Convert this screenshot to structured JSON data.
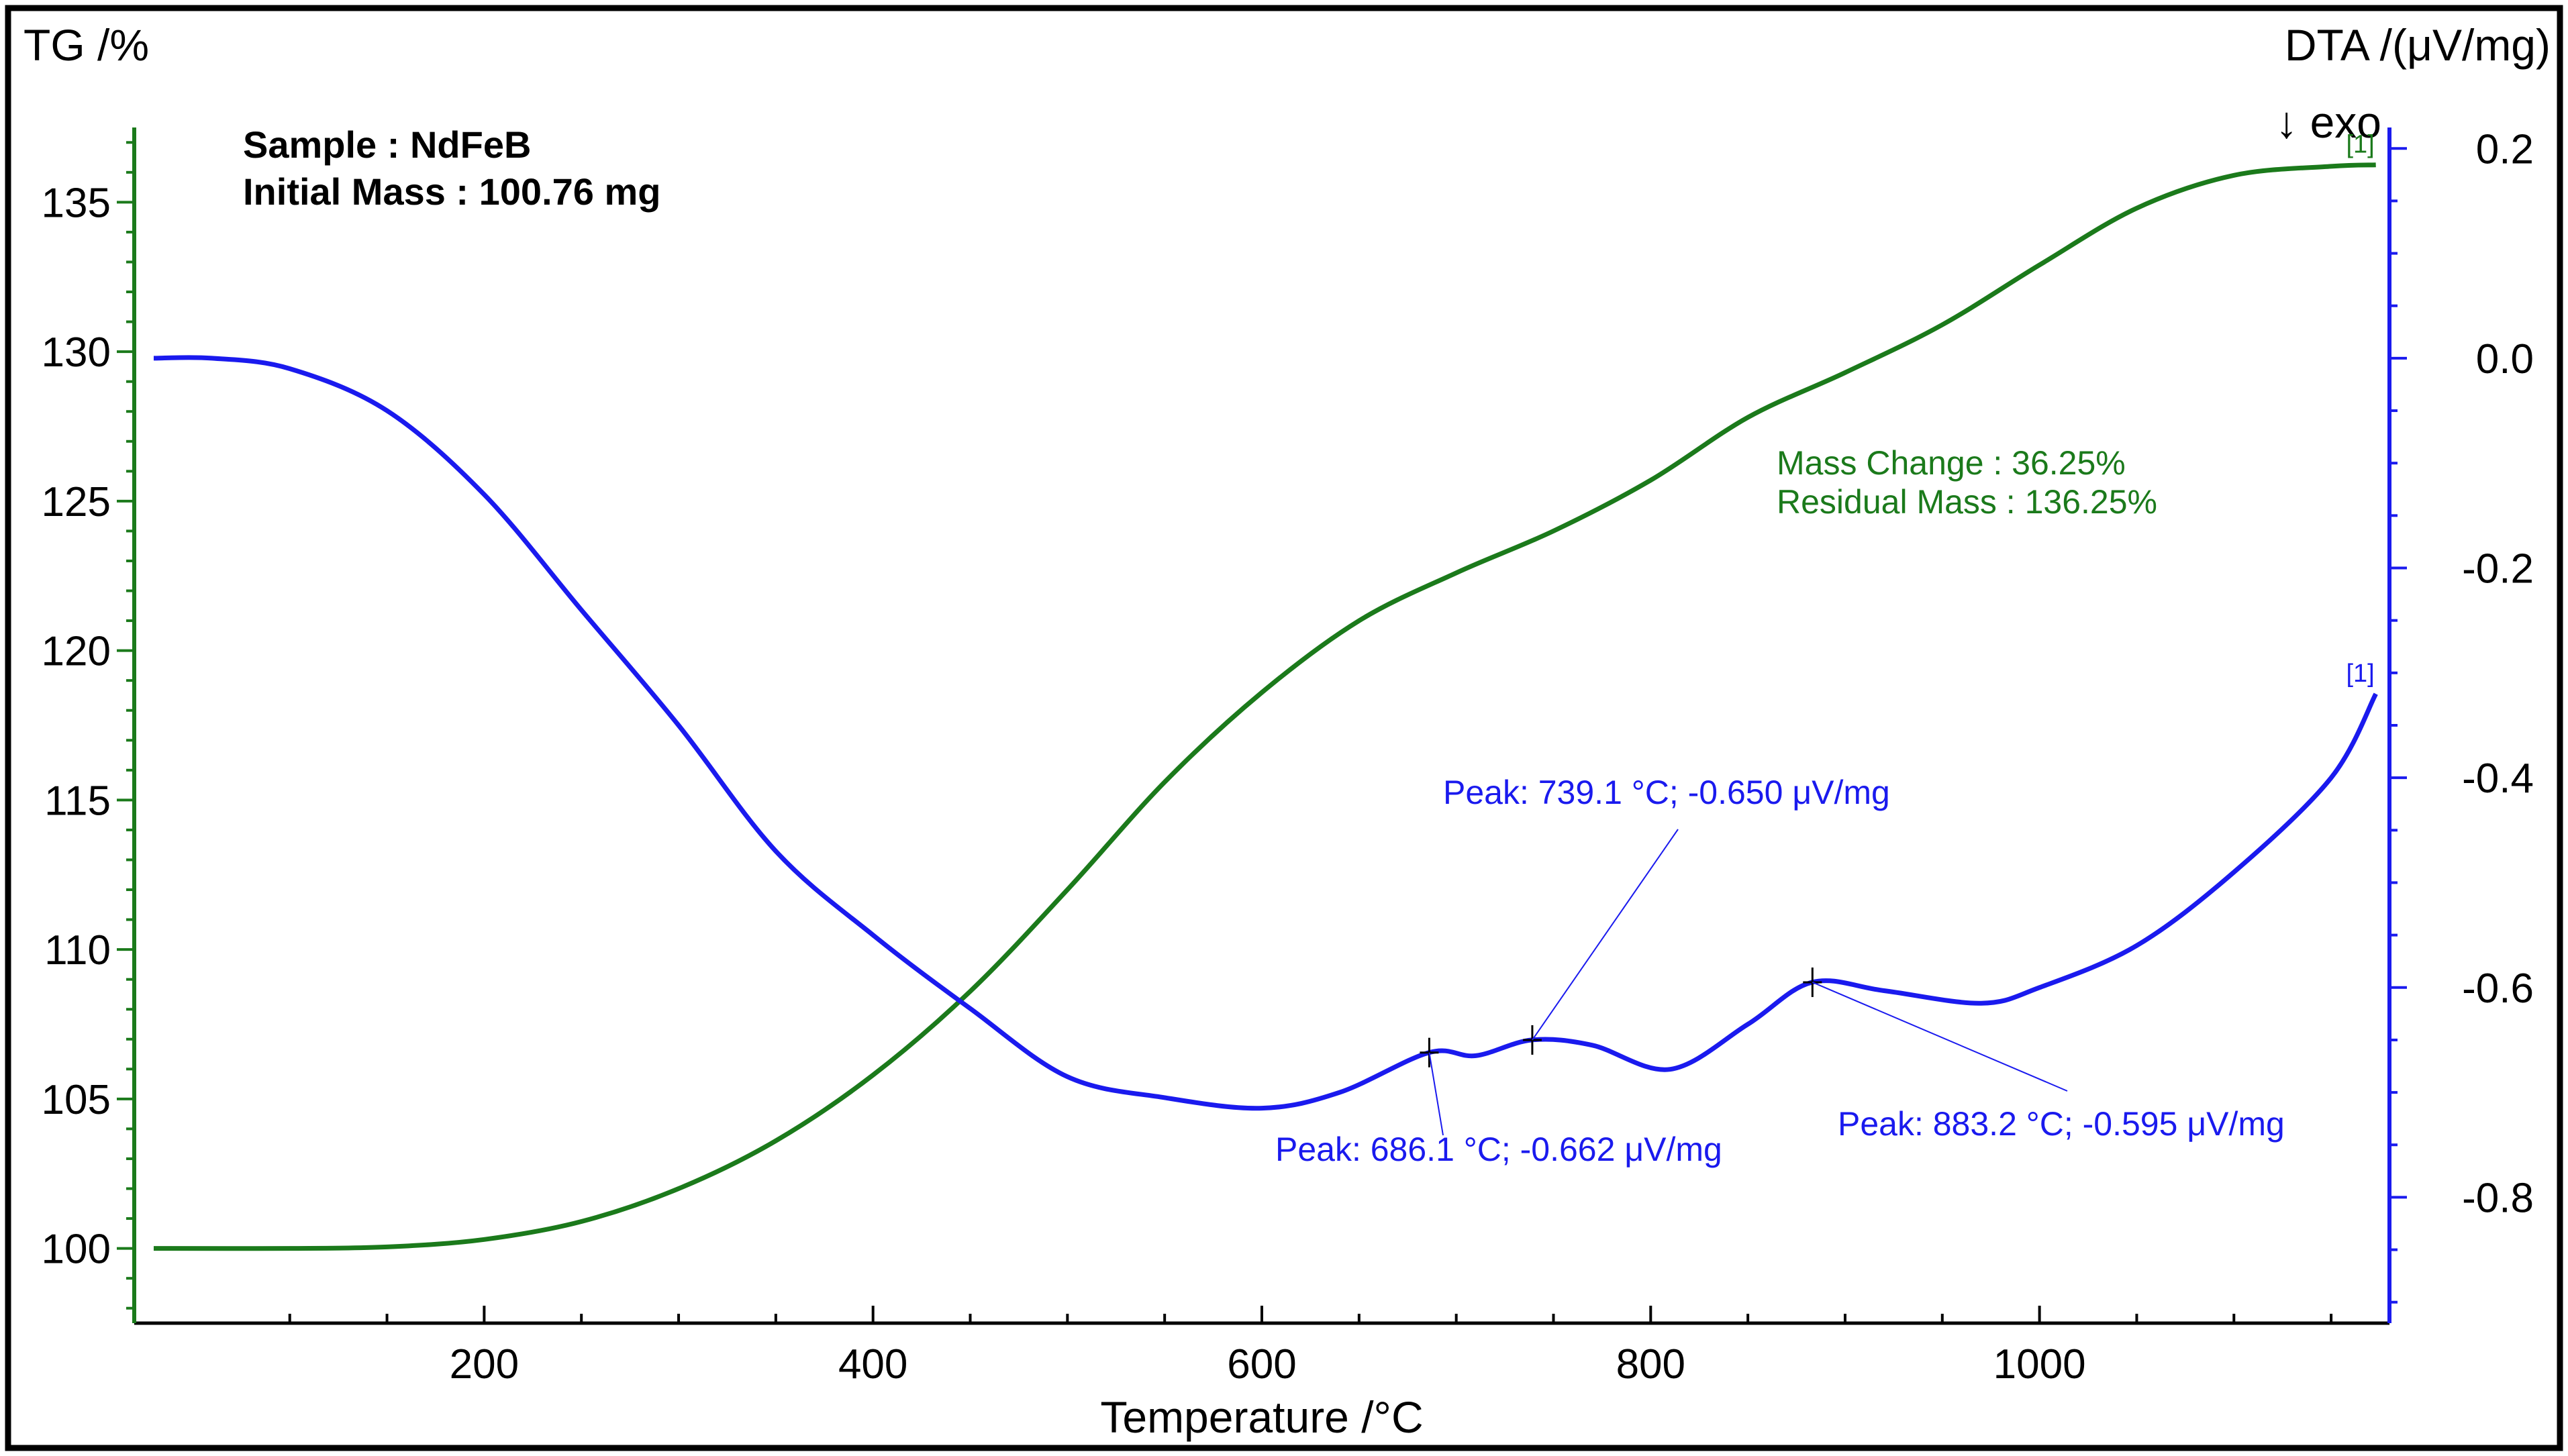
{
  "chart_data": {
    "type": "line",
    "xlabel": "Temperature /°C",
    "ylabel_left": "TG /%",
    "ylabel_right": "DTA /(μV/mg)",
    "exo_marker": "↓ exo",
    "xlim": [
      20,
      1180
    ],
    "ylim_left": [
      97.5,
      137.5
    ],
    "ylim_right": [
      -0.92,
      0.22
    ],
    "x_ticks": [
      200,
      400,
      600,
      800,
      1000
    ],
    "y_left_ticks": [
      100,
      105,
      110,
      115,
      120,
      125,
      130,
      135
    ],
    "y_right_ticks": [
      0.2,
      0.0,
      -0.2,
      -0.4,
      -0.6,
      -0.8
    ],
    "y_left_tick_labels": [
      "100",
      "105",
      "110",
      "115",
      "120",
      "125",
      "130",
      "135"
    ],
    "y_right_tick_labels": [
      "0.2",
      "0.0",
      "-0.2",
      "-0.4",
      "-0.6",
      "-0.8"
    ],
    "x_tick_labels": [
      "200",
      "400",
      "600",
      "800",
      "1000"
    ],
    "sample": {
      "line1": "Sample : NdFeB",
      "line2": "Initial Mass : 100.76 mg"
    },
    "tg_annotation": {
      "mass_change": "Mass Change : 36.25%",
      "residual_mass": "Residual Mass : 136.25%"
    },
    "series": [
      {
        "name": "TG",
        "axis": "left",
        "color": "#1b7a1b",
        "tag": "[1]",
        "x": [
          30,
          100,
          150,
          200,
          250,
          300,
          350,
          400,
          450,
          500,
          550,
          600,
          650,
          700,
          750,
          800,
          850,
          900,
          950,
          1000,
          1050,
          1100,
          1150,
          1173
        ],
        "y": [
          100.0,
          100.0,
          100.05,
          100.3,
          100.9,
          102.0,
          103.6,
          105.8,
          108.6,
          112.0,
          115.6,
          118.6,
          121.0,
          122.6,
          124.0,
          125.7,
          127.8,
          129.3,
          130.9,
          132.9,
          134.8,
          135.9,
          136.2,
          136.25
        ]
      },
      {
        "name": "DTA",
        "axis": "right",
        "color": "#1a1aee",
        "tag": "[1]",
        "x": [
          30,
          60,
          100,
          150,
          200,
          250,
          300,
          350,
          400,
          450,
          500,
          550,
          600,
          640,
          686,
          710,
          739,
          770,
          810,
          850,
          883,
          920,
          970,
          1000,
          1050,
          1100,
          1150,
          1173
        ],
        "y": [
          0.0,
          0.0,
          -0.01,
          -0.05,
          -0.13,
          -0.24,
          -0.35,
          -0.47,
          -0.55,
          -0.62,
          -0.685,
          -0.705,
          -0.715,
          -0.7,
          -0.662,
          -0.665,
          -0.65,
          -0.655,
          -0.678,
          -0.635,
          -0.595,
          -0.603,
          -0.615,
          -0.6,
          -0.56,
          -0.49,
          -0.4,
          -0.32
        ]
      }
    ],
    "peaks": [
      {
        "x": 686.1,
        "y": -0.662,
        "label": "Peak: 686.1 °C; -0.662 μV/mg"
      },
      {
        "x": 739.1,
        "y": -0.65,
        "label": "Peak: 739.1 °C; -0.650 μV/mg"
      },
      {
        "x": 883.2,
        "y": -0.595,
        "label": "Peak: 883.2 °C; -0.595 μV/mg"
      }
    ]
  }
}
